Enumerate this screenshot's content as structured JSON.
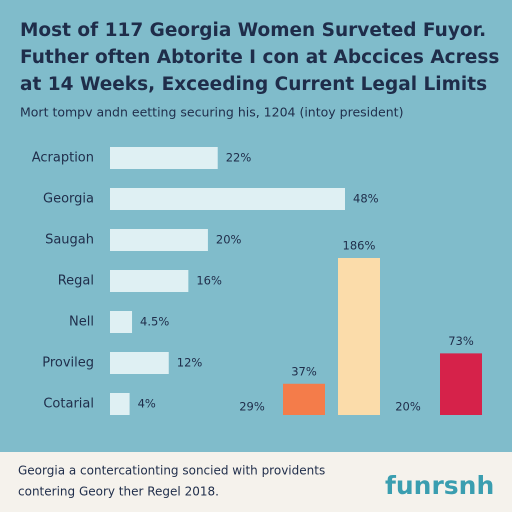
{
  "header": {
    "title": [
      "Most of 117 Georgia Women Surveted Fuyor.",
      "Futher often Abtorite I con at Abccices Acress",
      "at 14 Weeks, Exceeding Current Legal Limits"
    ],
    "subtitle": "Mort tompv andn eetting securing his, 1204 (intoy president)"
  },
  "chart_data": [
    {
      "type": "hbar",
      "categories": [
        "Acraption",
        "Georgia",
        "Saugah",
        "Regal",
        "Nell",
        "Provileg",
        "Cotarial"
      ],
      "values": [
        22,
        48,
        20,
        16,
        4.5,
        12,
        4
      ],
      "value_labels": [
        "22%",
        "48%",
        "20%",
        "16%",
        "4.5%",
        "12%",
        "4%"
      ],
      "color": "#dff0f3"
    },
    {
      "type": "bar",
      "values": [
        37,
        186,
        73
      ],
      "value_labels": [
        "37%",
        "186%",
        "73%"
      ],
      "colors": [
        "#f47c4a",
        "#fbdcaa",
        "#d6224a"
      ],
      "annotations": [
        "29%",
        "20%"
      ]
    }
  ],
  "footer": {
    "text": [
      "Georgia a contercationting soncied with providents",
      "contering Geory ther Regel 2018."
    ],
    "logo": "funrsnh"
  }
}
